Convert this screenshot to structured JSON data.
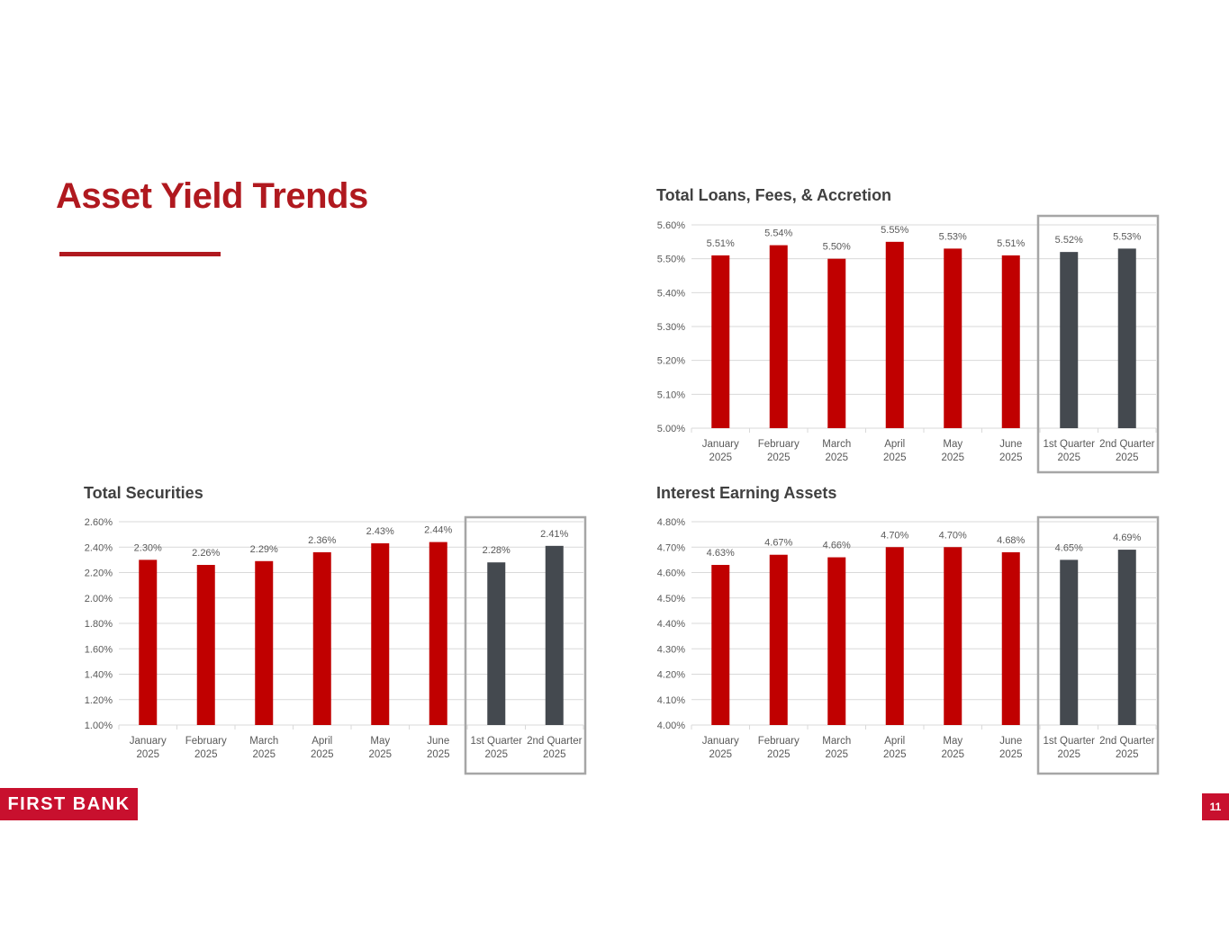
{
  "page": {
    "title": "Asset Yield Trends",
    "logo_text": "FIRST BANK",
    "page_number": "11"
  },
  "colors": {
    "brand": "#b0191f",
    "month_bar": "#c00000",
    "quarter_bar": "#44494f",
    "label": "#595959",
    "grid": "#d9d9d9",
    "highlight_box": "#a6a6a6"
  },
  "chart_data": [
    {
      "id": "loans",
      "type": "bar",
      "title": "Total Loans, Fees, & Accretion",
      "categories": [
        [
          "January",
          "2025"
        ],
        [
          "February",
          "2025"
        ],
        [
          "March",
          "2025"
        ],
        [
          "April",
          "2025"
        ],
        [
          "May",
          "2025"
        ],
        [
          "June",
          "2025"
        ],
        [
          "1st Quarter",
          "2025"
        ],
        [
          "2nd Quarter",
          "2025"
        ]
      ],
      "values": [
        5.51,
        5.54,
        5.5,
        5.55,
        5.53,
        5.51,
        5.52,
        5.53
      ],
      "value_labels": [
        "5.51%",
        "5.54%",
        "5.50%",
        "5.55%",
        "5.53%",
        "5.51%",
        "5.52%",
        "5.53%"
      ],
      "kinds": [
        "month",
        "month",
        "month",
        "month",
        "month",
        "month",
        "quarter",
        "quarter"
      ],
      "ylim": [
        5.0,
        5.6
      ],
      "yticks": [
        5.0,
        5.1,
        5.2,
        5.3,
        5.4,
        5.5,
        5.6
      ],
      "ytick_labels": [
        "5.00%",
        "5.10%",
        "5.20%",
        "5.30%",
        "5.40%",
        "5.50%",
        "5.60%"
      ],
      "xlabel": "",
      "ylabel": "",
      "grid": true,
      "legend": "none",
      "highlight": "quarters"
    },
    {
      "id": "securities",
      "type": "bar",
      "title": "Total Securities",
      "categories": [
        [
          "January",
          "2025"
        ],
        [
          "February",
          "2025"
        ],
        [
          "March",
          "2025"
        ],
        [
          "April",
          "2025"
        ],
        [
          "May",
          "2025"
        ],
        [
          "June",
          "2025"
        ],
        [
          "1st Quarter",
          "2025"
        ],
        [
          "2nd Quarter",
          "2025"
        ]
      ],
      "values": [
        2.3,
        2.26,
        2.29,
        2.36,
        2.43,
        2.44,
        2.28,
        2.41
      ],
      "value_labels": [
        "2.30%",
        "2.26%",
        "2.29%",
        "2.36%",
        "2.43%",
        "2.44%",
        "2.28%",
        "2.41%"
      ],
      "kinds": [
        "month",
        "month",
        "month",
        "month",
        "month",
        "month",
        "quarter",
        "quarter"
      ],
      "ylim": [
        1.0,
        2.6
      ],
      "yticks": [
        1.0,
        1.2,
        1.4,
        1.6,
        1.8,
        2.0,
        2.2,
        2.4,
        2.6
      ],
      "ytick_labels": [
        "1.00%",
        "1.20%",
        "1.40%",
        "1.60%",
        "1.80%",
        "2.00%",
        "2.20%",
        "2.40%",
        "2.60%"
      ],
      "xlabel": "",
      "ylabel": "",
      "grid": true,
      "legend": "none",
      "highlight": "quarters"
    },
    {
      "id": "earning",
      "type": "bar",
      "title": "Interest Earning Assets",
      "categories": [
        [
          "January",
          "2025"
        ],
        [
          "February",
          "2025"
        ],
        [
          "March",
          "2025"
        ],
        [
          "April",
          "2025"
        ],
        [
          "May",
          "2025"
        ],
        [
          "June",
          "2025"
        ],
        [
          "1st Quarter",
          "2025"
        ],
        [
          "2nd Quarter",
          "2025"
        ]
      ],
      "values": [
        4.63,
        4.67,
        4.66,
        4.7,
        4.7,
        4.68,
        4.65,
        4.69
      ],
      "value_labels": [
        "4.63%",
        "4.67%",
        "4.66%",
        "4.70%",
        "4.70%",
        "4.68%",
        "4.65%",
        "4.69%"
      ],
      "kinds": [
        "month",
        "month",
        "month",
        "month",
        "month",
        "month",
        "quarter",
        "quarter"
      ],
      "ylim": [
        4.0,
        4.8
      ],
      "yticks": [
        4.0,
        4.1,
        4.2,
        4.3,
        4.4,
        4.5,
        4.6,
        4.7,
        4.8
      ],
      "ytick_labels": [
        "4.00%",
        "4.10%",
        "4.20%",
        "4.30%",
        "4.40%",
        "4.50%",
        "4.60%",
        "4.70%",
        "4.80%"
      ],
      "xlabel": "",
      "ylabel": "",
      "grid": true,
      "legend": "none",
      "highlight": "quarters"
    }
  ]
}
